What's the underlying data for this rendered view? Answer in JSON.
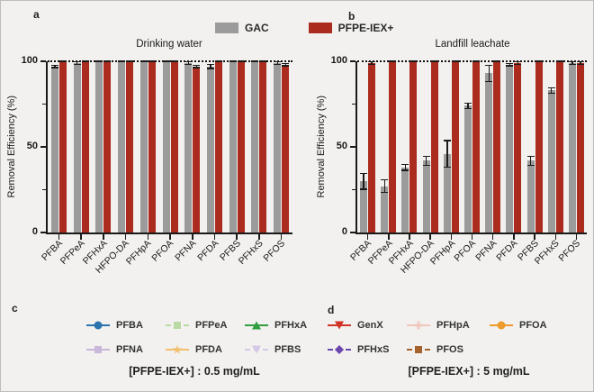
{
  "panels": {
    "a": "a",
    "b": "b",
    "c": "c",
    "d": "d"
  },
  "top_legend": {
    "items": [
      {
        "label": "GAC",
        "color": "#9b9b9b"
      },
      {
        "label": "PFPE-IEX+",
        "color": "#ab2c1e"
      }
    ]
  },
  "chart_data": [
    {
      "type": "bar",
      "title": "Drinking water",
      "xlabel": "",
      "ylabel": "Removal Efficiency (%)",
      "ylim": [
        0,
        100
      ],
      "yticks": [
        0,
        50,
        100
      ],
      "minor_yticks": [
        25,
        75
      ],
      "reference_line_y": 100,
      "grid": false,
      "legend_position": "top-center",
      "categories": [
        "PFBA",
        "PFPeA",
        "PFHxA",
        "HFPO-DA",
        "PFHpA",
        "PFOA",
        "PFNA",
        "PFDA",
        "PFBS",
        "PFHxS",
        "PFOS"
      ],
      "series": [
        {
          "name": "GAC",
          "color": "#9b9b9b",
          "values": [
            97,
            99,
            100,
            100,
            100,
            100,
            99,
            97,
            100,
            100,
            99
          ],
          "errors": [
            1,
            1,
            0.5,
            0.5,
            0.5,
            0.5,
            1,
            1.5,
            0.5,
            0.5,
            1
          ]
        },
        {
          "name": "PFPE-IEX+",
          "color": "#ab2c1e",
          "values": [
            100,
            100,
            100,
            100,
            100,
            100,
            97,
            100,
            100,
            100,
            98
          ],
          "errors": [
            0.5,
            0.5,
            0.5,
            0.5,
            0.5,
            0.5,
            1,
            0.5,
            0.5,
            0.5,
            1
          ]
        }
      ]
    },
    {
      "type": "bar",
      "title": "Landfill leachate",
      "xlabel": "",
      "ylabel": "Removal Efficiency (%)",
      "ylim": [
        0,
        100
      ],
      "yticks": [
        0,
        50,
        100
      ],
      "minor_yticks": [
        25,
        75
      ],
      "reference_line_y": 100,
      "grid": false,
      "legend_position": "top-center",
      "categories": [
        "PFBA",
        "PFPeA",
        "PFHxA",
        "HFPO-DA",
        "PFHpA",
        "PFOA",
        "PFNA",
        "PFDA",
        "PFBS",
        "PFHxS",
        "PFOS"
      ],
      "series": [
        {
          "name": "GAC",
          "color": "#9b9b9b",
          "values": [
            30,
            27,
            38,
            42,
            46,
            74,
            93,
            98,
            42,
            83,
            99
          ],
          "errors": [
            5,
            4,
            2,
            3,
            8,
            2,
            5,
            1,
            3,
            2,
            1
          ]
        },
        {
          "name": "PFPE-IEX+",
          "color": "#ab2c1e",
          "values": [
            99,
            100,
            100,
            100,
            100,
            100,
            100,
            99,
            100,
            100,
            99
          ],
          "errors": [
            1,
            0.5,
            0.5,
            0.5,
            0.5,
            0.5,
            0.5,
            1,
            0.5,
            0.5,
            1
          ]
        }
      ]
    }
  ],
  "legend_c": {
    "items": [
      {
        "label": "PFBA",
        "color": "#2b74b0",
        "marker": "circle",
        "line": "solid"
      },
      {
        "label": "PFPeA",
        "color": "#b9daa3",
        "marker": "square",
        "line": "dashed"
      },
      {
        "label": "PFHxA",
        "color": "#2f9e3f",
        "marker": "triangle-up",
        "line": "solid"
      },
      {
        "label": "PFNA",
        "color": "#c9b7da",
        "marker": "square",
        "line": "solid"
      },
      {
        "label": "PFDA",
        "color": "#f2c071",
        "marker": "star",
        "line": "solid"
      },
      {
        "label": "PFBS",
        "color": "#d5c7e7",
        "marker": "triangle-down",
        "line": "dashed"
      }
    ],
    "caption": "[PFPE-IEX+] :  0.5 mg/mL"
  },
  "legend_d": {
    "items": [
      {
        "label": "GenX",
        "color": "#d13327",
        "marker": "triangle-down",
        "line": "solid"
      },
      {
        "label": "PFHpA",
        "color": "#f0c6bd",
        "marker": "plus",
        "line": "solid"
      },
      {
        "label": "PFOA",
        "color": "#ef9a2d",
        "marker": "circle",
        "line": "solid"
      },
      {
        "label": "PFHxS",
        "color": "#6b46ad",
        "marker": "diamond",
        "line": "dashed"
      },
      {
        "label": "PFOS",
        "color": "#a5622c",
        "marker": "square",
        "line": "dashed"
      }
    ],
    "caption": "[PFPE-IEX+] :  5 mg/mL"
  }
}
